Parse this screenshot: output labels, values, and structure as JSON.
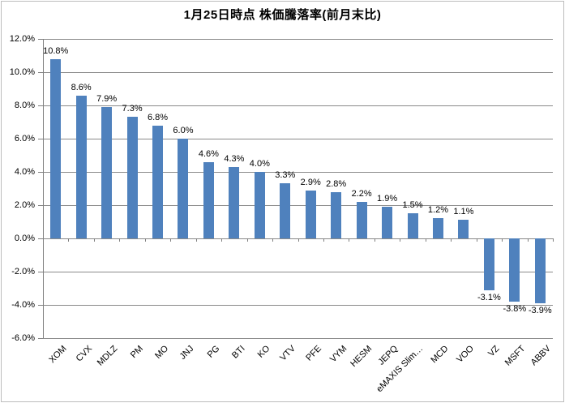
{
  "chart_data": {
    "type": "bar",
    "title": "1月25日時点 株価騰落率(前月末比)",
    "categories": [
      "XOM",
      "CVX",
      "MDLZ",
      "PM",
      "MO",
      "JNJ",
      "PG",
      "BTI",
      "KO",
      "VTV",
      "PFE",
      "VYM",
      "HESM",
      "JEPQ",
      "eMAXIS Slim…",
      "MCD",
      "VOO",
      "VZ",
      "MSFT",
      "ABBV"
    ],
    "values": [
      10.8,
      8.6,
      7.9,
      7.3,
      6.8,
      6.0,
      4.6,
      4.3,
      4.0,
      3.3,
      2.9,
      2.8,
      2.2,
      1.9,
      1.5,
      1.2,
      1.1,
      -3.1,
      -3.8,
      -3.9
    ],
    "value_labels": [
      "10.8%",
      "8.6%",
      "7.9%",
      "7.3%",
      "6.8%",
      "6.0%",
      "4.6%",
      "4.3%",
      "4.0%",
      "3.3%",
      "2.9%",
      "2.8%",
      "2.2%",
      "1.9%",
      "1.5%",
      "1.2%",
      "1.1%",
      "-3.1%",
      "-3.8%",
      "-3.9%"
    ],
    "y_ticks": [
      "12.0%",
      "10.0%",
      "8.0%",
      "6.0%",
      "4.0%",
      "2.0%",
      "0.0%",
      "-2.0%",
      "-4.0%",
      "-6.0%"
    ],
    "ylim": [
      -6,
      12
    ],
    "grid": true,
    "legend": "none",
    "xlabel": "",
    "ylabel": "",
    "colors": {
      "bar": "#4F81BD",
      "gridline": "#8A8A8A",
      "axis": "#808080",
      "text": "#000000",
      "border": "#BDBDBD",
      "background": "#FFFFFF"
    }
  }
}
